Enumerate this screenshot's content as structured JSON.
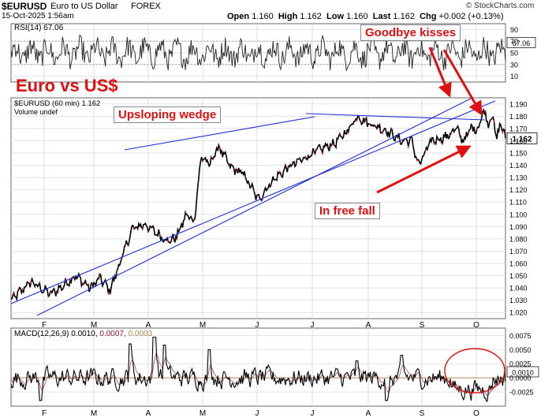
{
  "header": {
    "symbol": "$EURUSD",
    "description": "Euro to US Dollar",
    "exchange": "FOREX",
    "datetime": "15-Oct-2025 1:56am",
    "ohlc": [
      {
        "k": "Open",
        "v": "1.160"
      },
      {
        "k": "High",
        "v": "1.162"
      },
      {
        "k": "Low",
        "v": "1.160"
      },
      {
        "k": "Last",
        "v": "1.162"
      },
      {
        "k": "Chg",
        "v": "+0.002 (+0.13%)"
      }
    ],
    "watermark": "© StockCharts.com"
  },
  "annotations": {
    "title": "Euro vs US$",
    "wedge": "Upsloping wedge",
    "kisses": "Goodbye kisses",
    "fall": "In free fall"
  },
  "colors": {
    "price": "#000000",
    "trendline": "#1f2fd6",
    "arrow": "#e01010",
    "macd_signal": "#8b1a3a",
    "macd_hist": "#b08a4a",
    "circle": "#e01010",
    "title": "#e01010"
  },
  "chart_data": [
    {
      "type": "line",
      "name": "rsi",
      "legend": "RSI(14) 67.06",
      "current_label": "67.06",
      "ylim": [
        0,
        100
      ],
      "yticks": [
        10,
        30,
        50,
        70,
        90
      ]
    },
    {
      "type": "line",
      "name": "price",
      "legend": "$EURUSD (60 min) 1.162",
      "volume_legend": "Volume undef",
      "current_label": "1.162",
      "ylim": [
        1.015,
        1.195
      ],
      "yticks": [
        1.02,
        1.03,
        1.04,
        1.05,
        1.06,
        1.07,
        1.08,
        1.09,
        1.1,
        1.11,
        1.12,
        1.13,
        1.14,
        1.15,
        1.16,
        1.17,
        1.18,
        1.19
      ],
      "ytick_labels": [
        "1.020",
        "1.030",
        "1.040",
        "1.050",
        "1.060",
        "1.070",
        "1.080",
        "1.090",
        "1.100",
        "1.110",
        "1.120",
        "1.130",
        "1.140",
        "1.150",
        "1.160",
        "1.170",
        "1.180",
        "1.190"
      ],
      "x_months": [
        "F",
        "M",
        "A",
        "M",
        "J",
        "J",
        "A",
        "S",
        "O"
      ],
      "waypoints": [
        {
          "t": 0.0,
          "v": 1.03
        },
        {
          "t": 0.04,
          "v": 1.045
        },
        {
          "t": 0.08,
          "v": 1.035
        },
        {
          "t": 0.1,
          "v": 1.04
        },
        {
          "t": 0.13,
          "v": 1.05
        },
        {
          "t": 0.16,
          "v": 1.04
        },
        {
          "t": 0.18,
          "v": 1.048
        },
        {
          "t": 0.2,
          "v": 1.038
        },
        {
          "t": 0.22,
          "v": 1.06
        },
        {
          "t": 0.245,
          "v": 1.088
        },
        {
          "t": 0.27,
          "v": 1.092
        },
        {
          "t": 0.3,
          "v": 1.083
        },
        {
          "t": 0.32,
          "v": 1.078
        },
        {
          "t": 0.335,
          "v": 1.082
        },
        {
          "t": 0.355,
          "v": 1.1
        },
        {
          "t": 0.37,
          "v": 1.094
        },
        {
          "t": 0.385,
          "v": 1.148
        },
        {
          "t": 0.4,
          "v": 1.14
        },
        {
          "t": 0.42,
          "v": 1.155
        },
        {
          "t": 0.445,
          "v": 1.138
        },
        {
          "t": 0.47,
          "v": 1.133
        },
        {
          "t": 0.5,
          "v": 1.112
        },
        {
          "t": 0.53,
          "v": 1.128
        },
        {
          "t": 0.56,
          "v": 1.138
        },
        {
          "t": 0.59,
          "v": 1.145
        },
        {
          "t": 0.62,
          "v": 1.152
        },
        {
          "t": 0.655,
          "v": 1.158
        },
        {
          "t": 0.68,
          "v": 1.168
        },
        {
          "t": 0.7,
          "v": 1.18
        },
        {
          "t": 0.72,
          "v": 1.175
        },
        {
          "t": 0.76,
          "v": 1.168
        },
        {
          "t": 0.79,
          "v": 1.16
        },
        {
          "t": 0.81,
          "v": 1.16
        },
        {
          "t": 0.825,
          "v": 1.14
        },
        {
          "t": 0.85,
          "v": 1.16
        },
        {
          "t": 0.88,
          "v": 1.163
        },
        {
          "t": 0.9,
          "v": 1.17
        },
        {
          "t": 0.915,
          "v": 1.16
        },
        {
          "t": 0.93,
          "v": 1.17
        },
        {
          "t": 0.945,
          "v": 1.17
        },
        {
          "t": 0.955,
          "v": 1.185
        },
        {
          "t": 0.965,
          "v": 1.175
        },
        {
          "t": 0.975,
          "v": 1.18
        },
        {
          "t": 0.982,
          "v": 1.16
        },
        {
          "t": 0.99,
          "v": 1.175
        },
        {
          "t": 1.0,
          "v": 1.162
        }
      ]
    },
    {
      "type": "line",
      "name": "macd",
      "legend": "MACD(12,26,9) 0.0010, 0.0007, 0.0003",
      "legend_parts": [
        "MACD(12,26,9)",
        "0.0010,",
        "0.0007,",
        "0.0003"
      ],
      "current_label": "0.0010",
      "ylim": [
        -0.005,
        0.0088
      ],
      "yticks": [
        -0.0025,
        0.0,
        0.0025,
        0.005,
        0.0075
      ],
      "ytick_labels": [
        "-0.0025",
        "0.0000",
        "0.0025",
        "0.0050",
        "0.0075"
      ],
      "x_months": [
        "F",
        "M",
        "A",
        "M",
        "J",
        "J",
        "A",
        "S",
        "O"
      ]
    }
  ]
}
